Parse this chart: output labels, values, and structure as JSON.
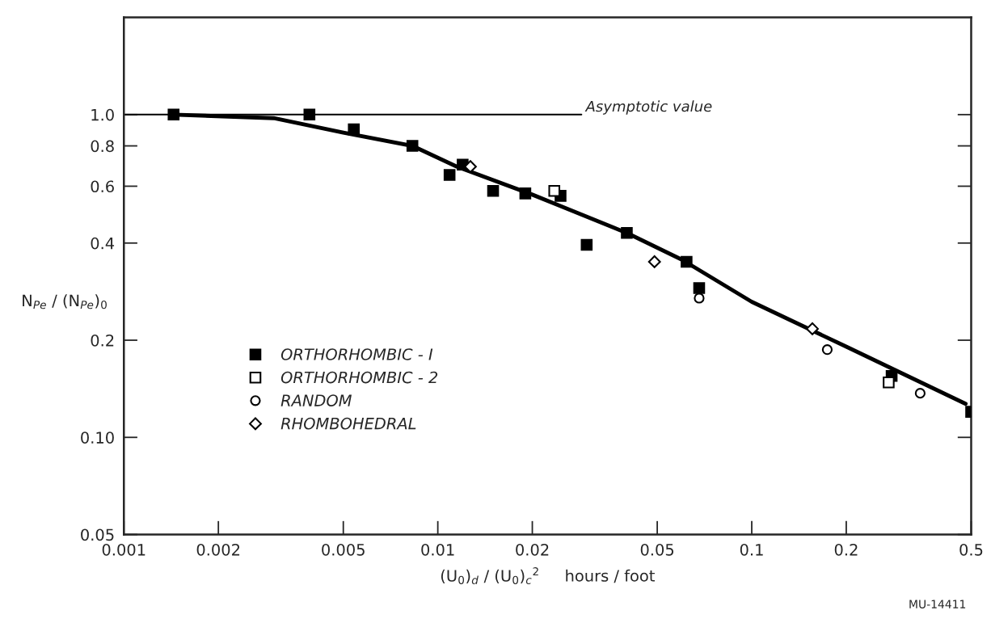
{
  "chart_data": {
    "type": "scatter",
    "xlabel": "(U$_{0}$)$_{d}$ / (U$_{0}$)$_{c}$$^{2}$     hours / foot",
    "ylabel": "N$_{Pe}$ / (N$_{Pe}$)$_{0}$",
    "xlim": [
      0.001,
      0.5
    ],
    "ylim": [
      0.05,
      2.0
    ],
    "log": "xy",
    "xticks": [
      0.001,
      0.002,
      0.005,
      0.01,
      0.02,
      0.05,
      0.1,
      0.2,
      0.5
    ],
    "yticks": [
      {
        "value": 0.05,
        "label": "0.05"
      },
      {
        "value": 0.1,
        "label": "0.10"
      },
      {
        "value": 0.2,
        "label": "0.2"
      },
      {
        "value": 0.4,
        "label": "0.4"
      },
      {
        "value": 0.6,
        "label": "0.6"
      },
      {
        "value": 0.8,
        "label": "0.8"
      },
      {
        "value": 1.0,
        "label": "1.0"
      }
    ],
    "grid": false,
    "legend": "lower left",
    "ref_lines": [
      {
        "axis": "y",
        "value": 1.0,
        "label": "Asymptotic value",
        "color": "#000000"
      }
    ],
    "annotations": [
      "MU-14411"
    ],
    "series": [
      {
        "name": "ORTHORHOMBIC - I",
        "marker": "square",
        "color": "#000000",
        "x": [
          0.00144,
          0.0039,
          0.0054,
          0.0083,
          0.0109,
          0.012,
          0.015,
          0.019,
          0.0246,
          0.0298,
          0.04,
          0.062,
          0.068,
          0.279,
          0.5
        ],
        "values": [
          1.0,
          1.0,
          0.9,
          0.8,
          0.65,
          0.7,
          0.58,
          0.57,
          0.56,
          0.395,
          0.43,
          0.35,
          0.29,
          0.155,
          0.12
        ]
      },
      {
        "name": "ORTHORHOMBIC - 2",
        "marker": "square",
        "color": "#ffffff",
        "x": [
          0.0235,
          0.273
        ],
        "values": [
          0.58,
          0.148
        ]
      },
      {
        "name": "RANDOM",
        "marker": "circle",
        "color": "#ffffff",
        "x": [
          0.068,
          0.174,
          0.344
        ],
        "values": [
          0.27,
          0.187,
          0.137
        ]
      },
      {
        "name": "RHOMBOHEDRAL",
        "marker": "diamond",
        "color": "#ffffff",
        "x": [
          0.0127,
          0.049,
          0.156
        ],
        "values": [
          0.69,
          0.35,
          0.217
        ]
      },
      {
        "type": "line",
        "marker": "none",
        "line_style": "solid",
        "color": "#000000",
        "x": [
          0.00144,
          0.003,
          0.005,
          0.0083,
          0.0115,
          0.02,
          0.04,
          0.06,
          0.1,
          0.2,
          0.48
        ],
        "values": [
          1.0,
          0.975,
          0.88,
          0.8,
          0.69,
          0.565,
          0.43,
          0.355,
          0.263,
          0.191,
          0.127
        ]
      }
    ]
  }
}
